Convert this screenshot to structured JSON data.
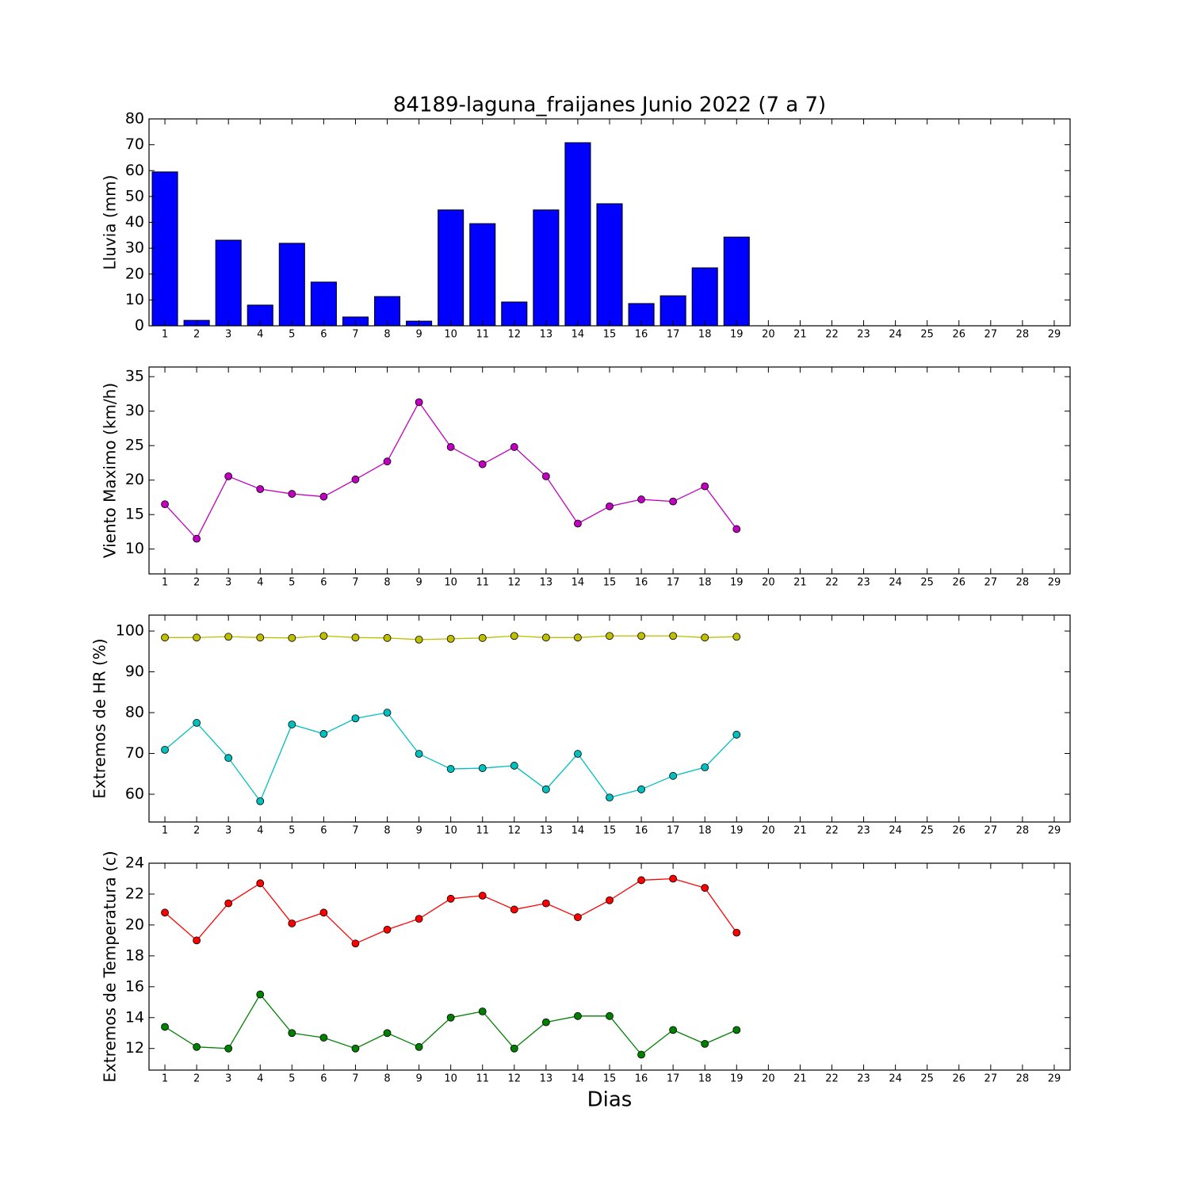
{
  "chart_data": [
    {
      "type": "bar",
      "title": "84189-laguna_fraijanes Junio 2022  (7 a 7)",
      "ylabel": "Lluvia (mm)",
      "x": [
        1,
        2,
        3,
        4,
        5,
        6,
        7,
        8,
        9,
        10,
        11,
        12,
        13,
        14,
        15,
        16,
        17,
        18,
        19
      ],
      "values": [
        59.5,
        2.1,
        33.1,
        8.0,
        31.9,
        16.9,
        3.4,
        11.3,
        1.8,
        44.8,
        39.5,
        9.2,
        44.8,
        70.8,
        47.2,
        8.6,
        11.6,
        22.4,
        34.3
      ],
      "color": "#0000ff",
      "bar_width": 0.8,
      "xlim": [
        0.5,
        29.5
      ],
      "xticks": [
        1,
        2,
        3,
        4,
        5,
        6,
        7,
        8,
        9,
        10,
        11,
        12,
        13,
        14,
        15,
        16,
        17,
        18,
        19,
        20,
        21,
        22,
        23,
        24,
        25,
        26,
        27,
        28,
        29
      ],
      "ylim": [
        0,
        80
      ],
      "yticks": [
        0,
        10,
        20,
        30,
        40,
        50,
        60,
        70,
        80
      ]
    },
    {
      "type": "line",
      "ylabel": "Viento Maximo (km/h)",
      "x": [
        1,
        2,
        3,
        4,
        5,
        6,
        7,
        8,
        9,
        10,
        11,
        12,
        13,
        14,
        15,
        16,
        17,
        18,
        19
      ],
      "series": [
        {
          "color": "#bf00bf",
          "values": [
            16.5,
            11.5,
            20.55,
            18.7,
            18.0,
            17.6,
            20.1,
            22.7,
            31.3,
            24.8,
            22.3,
            24.8,
            20.55,
            13.7,
            16.2,
            17.2,
            16.9,
            19.1,
            12.9
          ]
        }
      ],
      "xlim": [
        0.5,
        29.5
      ],
      "xticks": [
        1,
        2,
        3,
        4,
        5,
        6,
        7,
        8,
        9,
        10,
        11,
        12,
        13,
        14,
        15,
        16,
        17,
        18,
        19,
        20,
        21,
        22,
        23,
        24,
        25,
        26,
        27,
        28,
        29
      ],
      "ylim": [
        6.4,
        36.4
      ],
      "yticks": [
        10,
        15,
        20,
        25,
        30,
        35
      ]
    },
    {
      "type": "line",
      "ylabel": "Extremos de HR (%)",
      "x": [
        1,
        2,
        3,
        4,
        5,
        6,
        7,
        8,
        9,
        10,
        11,
        12,
        13,
        14,
        15,
        16,
        17,
        18,
        19
      ],
      "series": [
        {
          "color": "#bfbf00",
          "values": [
            98.4,
            98.4,
            98.6,
            98.4,
            98.3,
            98.8,
            98.4,
            98.3,
            97.9,
            98.1,
            98.3,
            98.8,
            98.4,
            98.4,
            98.8,
            98.8,
            98.8,
            98.4,
            98.6
          ]
        },
        {
          "color": "#00bfbf",
          "values": [
            70.9,
            77.5,
            68.9,
            58.3,
            77.1,
            74.8,
            78.6,
            80.0,
            69.9,
            66.2,
            66.4,
            67.0,
            61.2,
            69.9,
            59.2,
            61.2,
            64.5,
            66.6,
            74.6
          ]
        }
      ],
      "xlim": [
        0.5,
        29.5
      ],
      "xticks": [
        1,
        2,
        3,
        4,
        5,
        6,
        7,
        8,
        9,
        10,
        11,
        12,
        13,
        14,
        15,
        16,
        17,
        18,
        19,
        20,
        21,
        22,
        23,
        24,
        25,
        26,
        27,
        28,
        29
      ],
      "ylim": [
        53.2,
        103.9
      ],
      "yticks": [
        60,
        70,
        80,
        90,
        100
      ]
    },
    {
      "type": "line",
      "ylabel": "Extremos de Temperatura (c)",
      "xlabel": "Dias",
      "x": [
        1,
        2,
        3,
        4,
        5,
        6,
        7,
        8,
        9,
        10,
        11,
        12,
        13,
        14,
        15,
        16,
        17,
        18,
        19
      ],
      "series": [
        {
          "color": "#ff0000",
          "values": [
            20.8,
            19.0,
            21.4,
            22.7,
            20.1,
            20.8,
            18.8,
            19.7,
            20.4,
            21.7,
            21.9,
            21.0,
            21.4,
            20.5,
            21.6,
            22.9,
            23.0,
            22.4,
            19.5
          ]
        },
        {
          "color": "#008000",
          "values": [
            13.4,
            12.1,
            12.0,
            15.5,
            13.0,
            12.7,
            12.0,
            13.0,
            12.1,
            14.0,
            14.4,
            12.0,
            13.7,
            14.1,
            14.1,
            11.6,
            13.2,
            12.3,
            13.2
          ]
        }
      ],
      "xlim": [
        0.5,
        29.5
      ],
      "xticks": [
        1,
        2,
        3,
        4,
        5,
        6,
        7,
        8,
        9,
        10,
        11,
        12,
        13,
        14,
        15,
        16,
        17,
        18,
        19,
        20,
        21,
        22,
        23,
        24,
        25,
        26,
        27,
        28,
        29
      ],
      "ylim": [
        10.6,
        24
      ],
      "yticks": [
        12,
        14,
        16,
        18,
        20,
        22,
        24
      ]
    }
  ]
}
